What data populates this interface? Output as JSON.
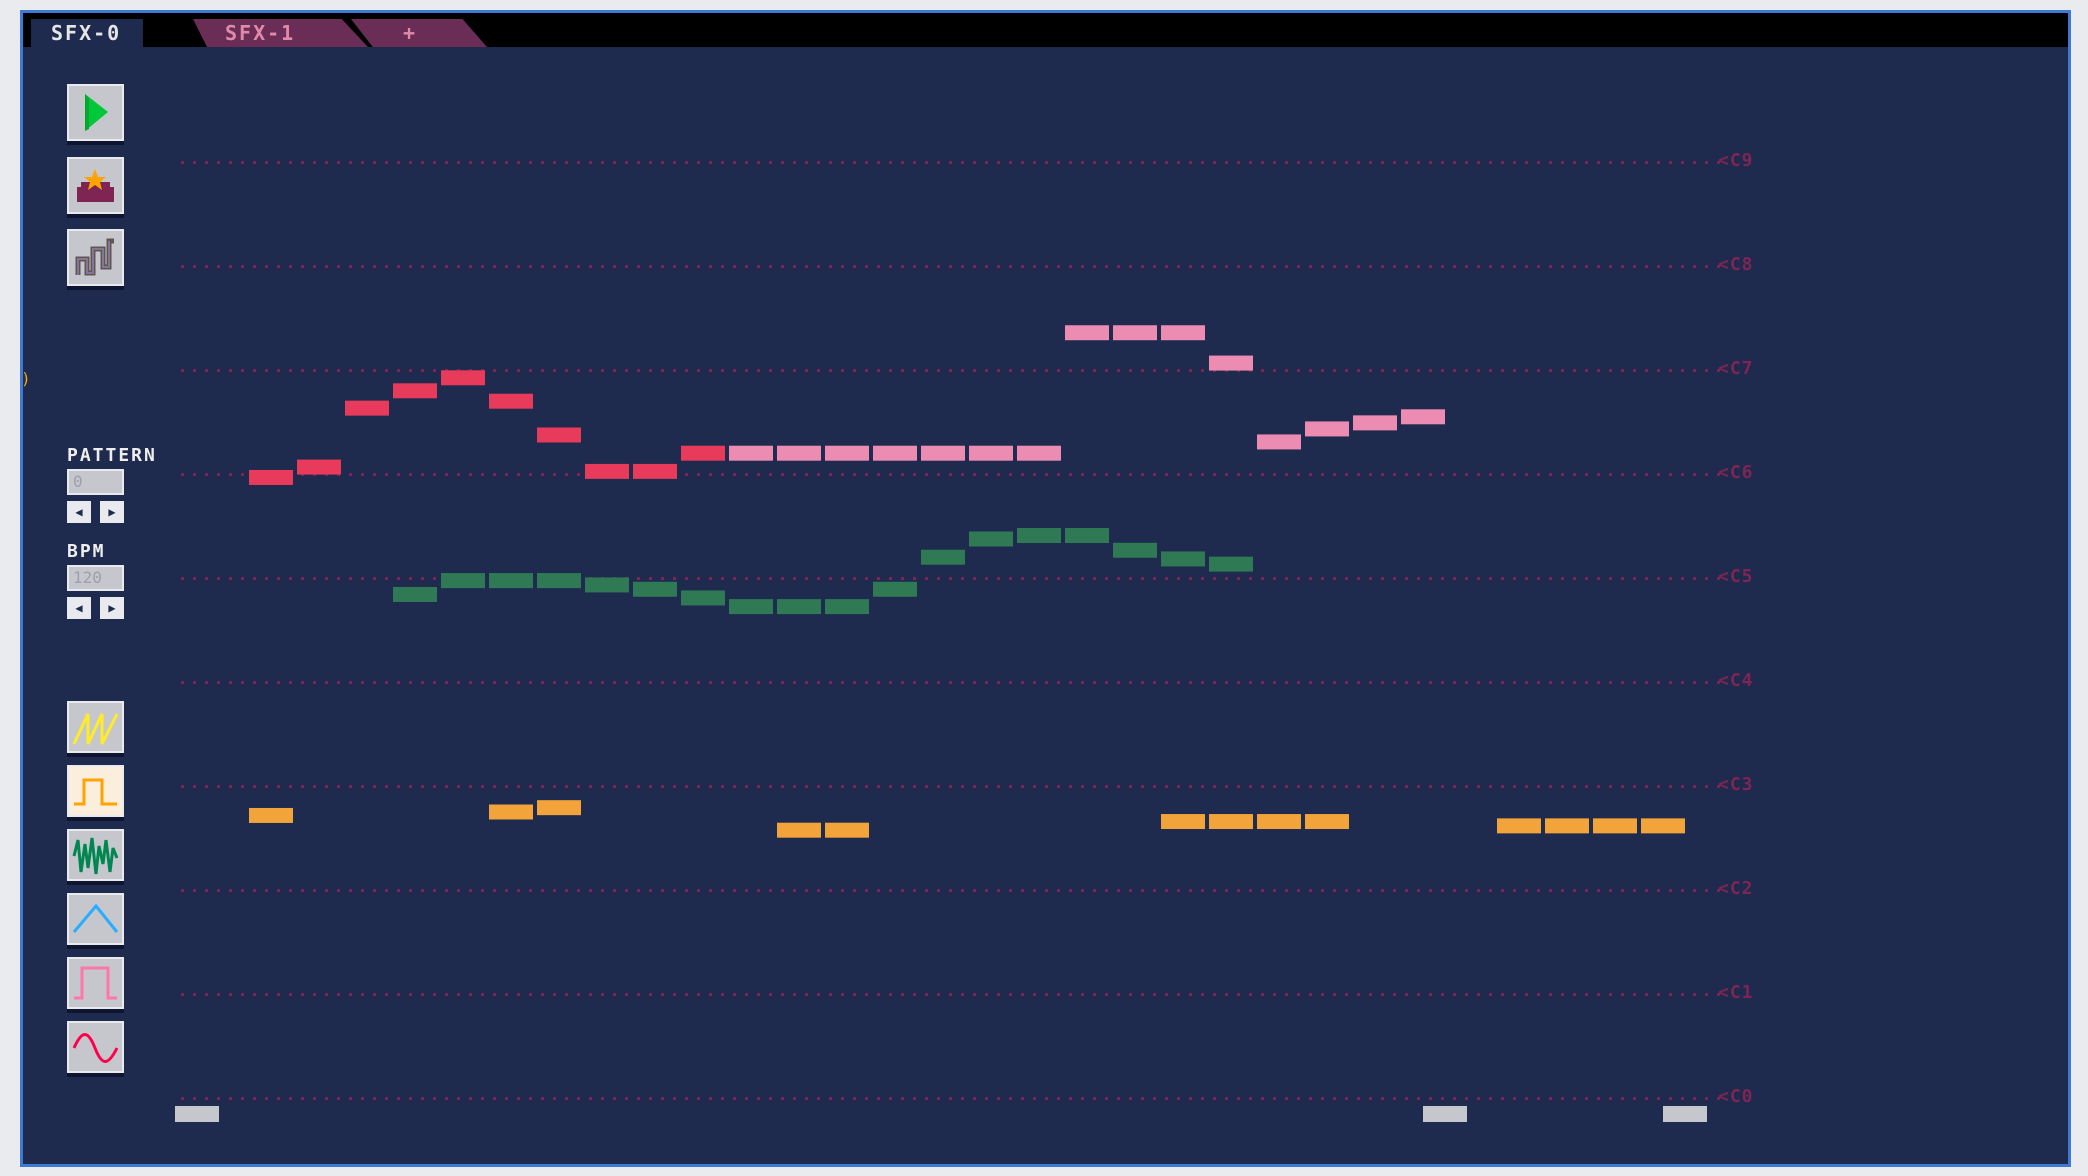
{
  "tabs": [
    {
      "label": "SFX-0",
      "active": true
    },
    {
      "label": "SFX-1",
      "active": false
    },
    {
      "label": "+",
      "active": false
    }
  ],
  "toolbar": {
    "play_icon": "play-icon",
    "load_icon": "load-icon",
    "envelope_icon": "envelope-icon"
  },
  "pattern": {
    "label": "PATTERN",
    "value": "0"
  },
  "bpm": {
    "label": "BPM",
    "value": "120"
  },
  "waveforms": [
    {
      "name": "sawtooth-wave-icon",
      "color": "#ffec27"
    },
    {
      "name": "square-wave-icon",
      "color": "#ffa300"
    },
    {
      "name": "noise-wave-icon",
      "color": "#008751"
    },
    {
      "name": "triangle-wave-icon",
      "color": "#29adff"
    },
    {
      "name": "pulse-wave-icon",
      "color": "#ff77a8"
    },
    {
      "name": "sine-wave-icon",
      "color": "#ff004d"
    }
  ],
  "note_labels": [
    "C9",
    "C8",
    "C7",
    "C6",
    "C5",
    "C4",
    "C3",
    "C2",
    "C1",
    "C0"
  ],
  "colors": {
    "background": "#1e2a4e",
    "grid_dots": "#7e2553",
    "red": "#e83a5a",
    "pink": "#ec8cb2",
    "green": "#2f7a55",
    "orange": "#f2a33a",
    "marker": "#c6c7cc"
  },
  "sequence": {
    "steps": 32,
    "tracks": [
      {
        "name": "red",
        "color": "#e83a5a",
        "notes": [
          {
            "step": 1,
            "pitch": 71.6
          },
          {
            "step": 2,
            "pitch": 72.8
          },
          {
            "step": 3,
            "pitch": 79.6
          },
          {
            "step": 4,
            "pitch": 81.6
          },
          {
            "step": 5,
            "pitch": 83.1
          },
          {
            "step": 6,
            "pitch": 80.4
          },
          {
            "step": 7,
            "pitch": 76.5
          },
          {
            "step": 8,
            "pitch": 72.3
          },
          {
            "step": 9,
            "pitch": 72.3
          },
          {
            "step": 10,
            "pitch": 74.4
          }
        ]
      },
      {
        "name": "pink",
        "color": "#ec8cb2",
        "notes": [
          {
            "step": 11,
            "pitch": 74.4
          },
          {
            "step": 12,
            "pitch": 74.4
          },
          {
            "step": 13,
            "pitch": 74.4
          },
          {
            "step": 14,
            "pitch": 74.4
          },
          {
            "step": 15,
            "pitch": 74.4
          },
          {
            "step": 16,
            "pitch": 74.4
          },
          {
            "step": 17,
            "pitch": 74.4
          },
          {
            "step": 18,
            "pitch": 88.3
          },
          {
            "step": 19,
            "pitch": 88.3
          },
          {
            "step": 20,
            "pitch": 88.3
          },
          {
            "step": 21,
            "pitch": 84.8
          },
          {
            "step": 22,
            "pitch": 75.7
          },
          {
            "step": 23,
            "pitch": 77.2
          },
          {
            "step": 24,
            "pitch": 77.9
          },
          {
            "step": 25,
            "pitch": 78.6
          }
        ]
      },
      {
        "name": "green",
        "color": "#2f7a55",
        "notes": [
          {
            "step": 4,
            "pitch": 58.1
          },
          {
            "step": 5,
            "pitch": 59.7
          },
          {
            "step": 6,
            "pitch": 59.7
          },
          {
            "step": 7,
            "pitch": 59.7
          },
          {
            "step": 8,
            "pitch": 59.2
          },
          {
            "step": 9,
            "pitch": 58.7
          },
          {
            "step": 10,
            "pitch": 57.7
          },
          {
            "step": 11,
            "pitch": 56.7
          },
          {
            "step": 12,
            "pitch": 56.7
          },
          {
            "step": 13,
            "pitch": 56.7
          },
          {
            "step": 14,
            "pitch": 58.7
          },
          {
            "step": 15,
            "pitch": 62.4
          },
          {
            "step": 16,
            "pitch": 64.5
          },
          {
            "step": 17,
            "pitch": 64.9
          },
          {
            "step": 18,
            "pitch": 64.9
          },
          {
            "step": 19,
            "pitch": 63.2
          },
          {
            "step": 20,
            "pitch": 62.2
          },
          {
            "step": 21,
            "pitch": 61.6
          }
        ]
      },
      {
        "name": "orange",
        "color": "#f2a33a",
        "notes": [
          {
            "step": 1,
            "pitch": 32.6
          },
          {
            "step": 6,
            "pitch": 33.0
          },
          {
            "step": 7,
            "pitch": 33.5
          },
          {
            "step": 12,
            "pitch": 30.9
          },
          {
            "step": 13,
            "pitch": 30.9
          },
          {
            "step": 20,
            "pitch": 31.9
          },
          {
            "step": 21,
            "pitch": 31.9
          },
          {
            "step": 22,
            "pitch": 31.9
          },
          {
            "step": 23,
            "pitch": 31.9
          },
          {
            "step": 27,
            "pitch": 31.4
          },
          {
            "step": 28,
            "pitch": 31.4
          },
          {
            "step": 29,
            "pitch": 31.4
          },
          {
            "step": 30,
            "pitch": 31.4
          }
        ]
      }
    ],
    "markers": [
      {
        "step": 0
      },
      {
        "step": 26
      },
      {
        "step": 31
      }
    ]
  }
}
